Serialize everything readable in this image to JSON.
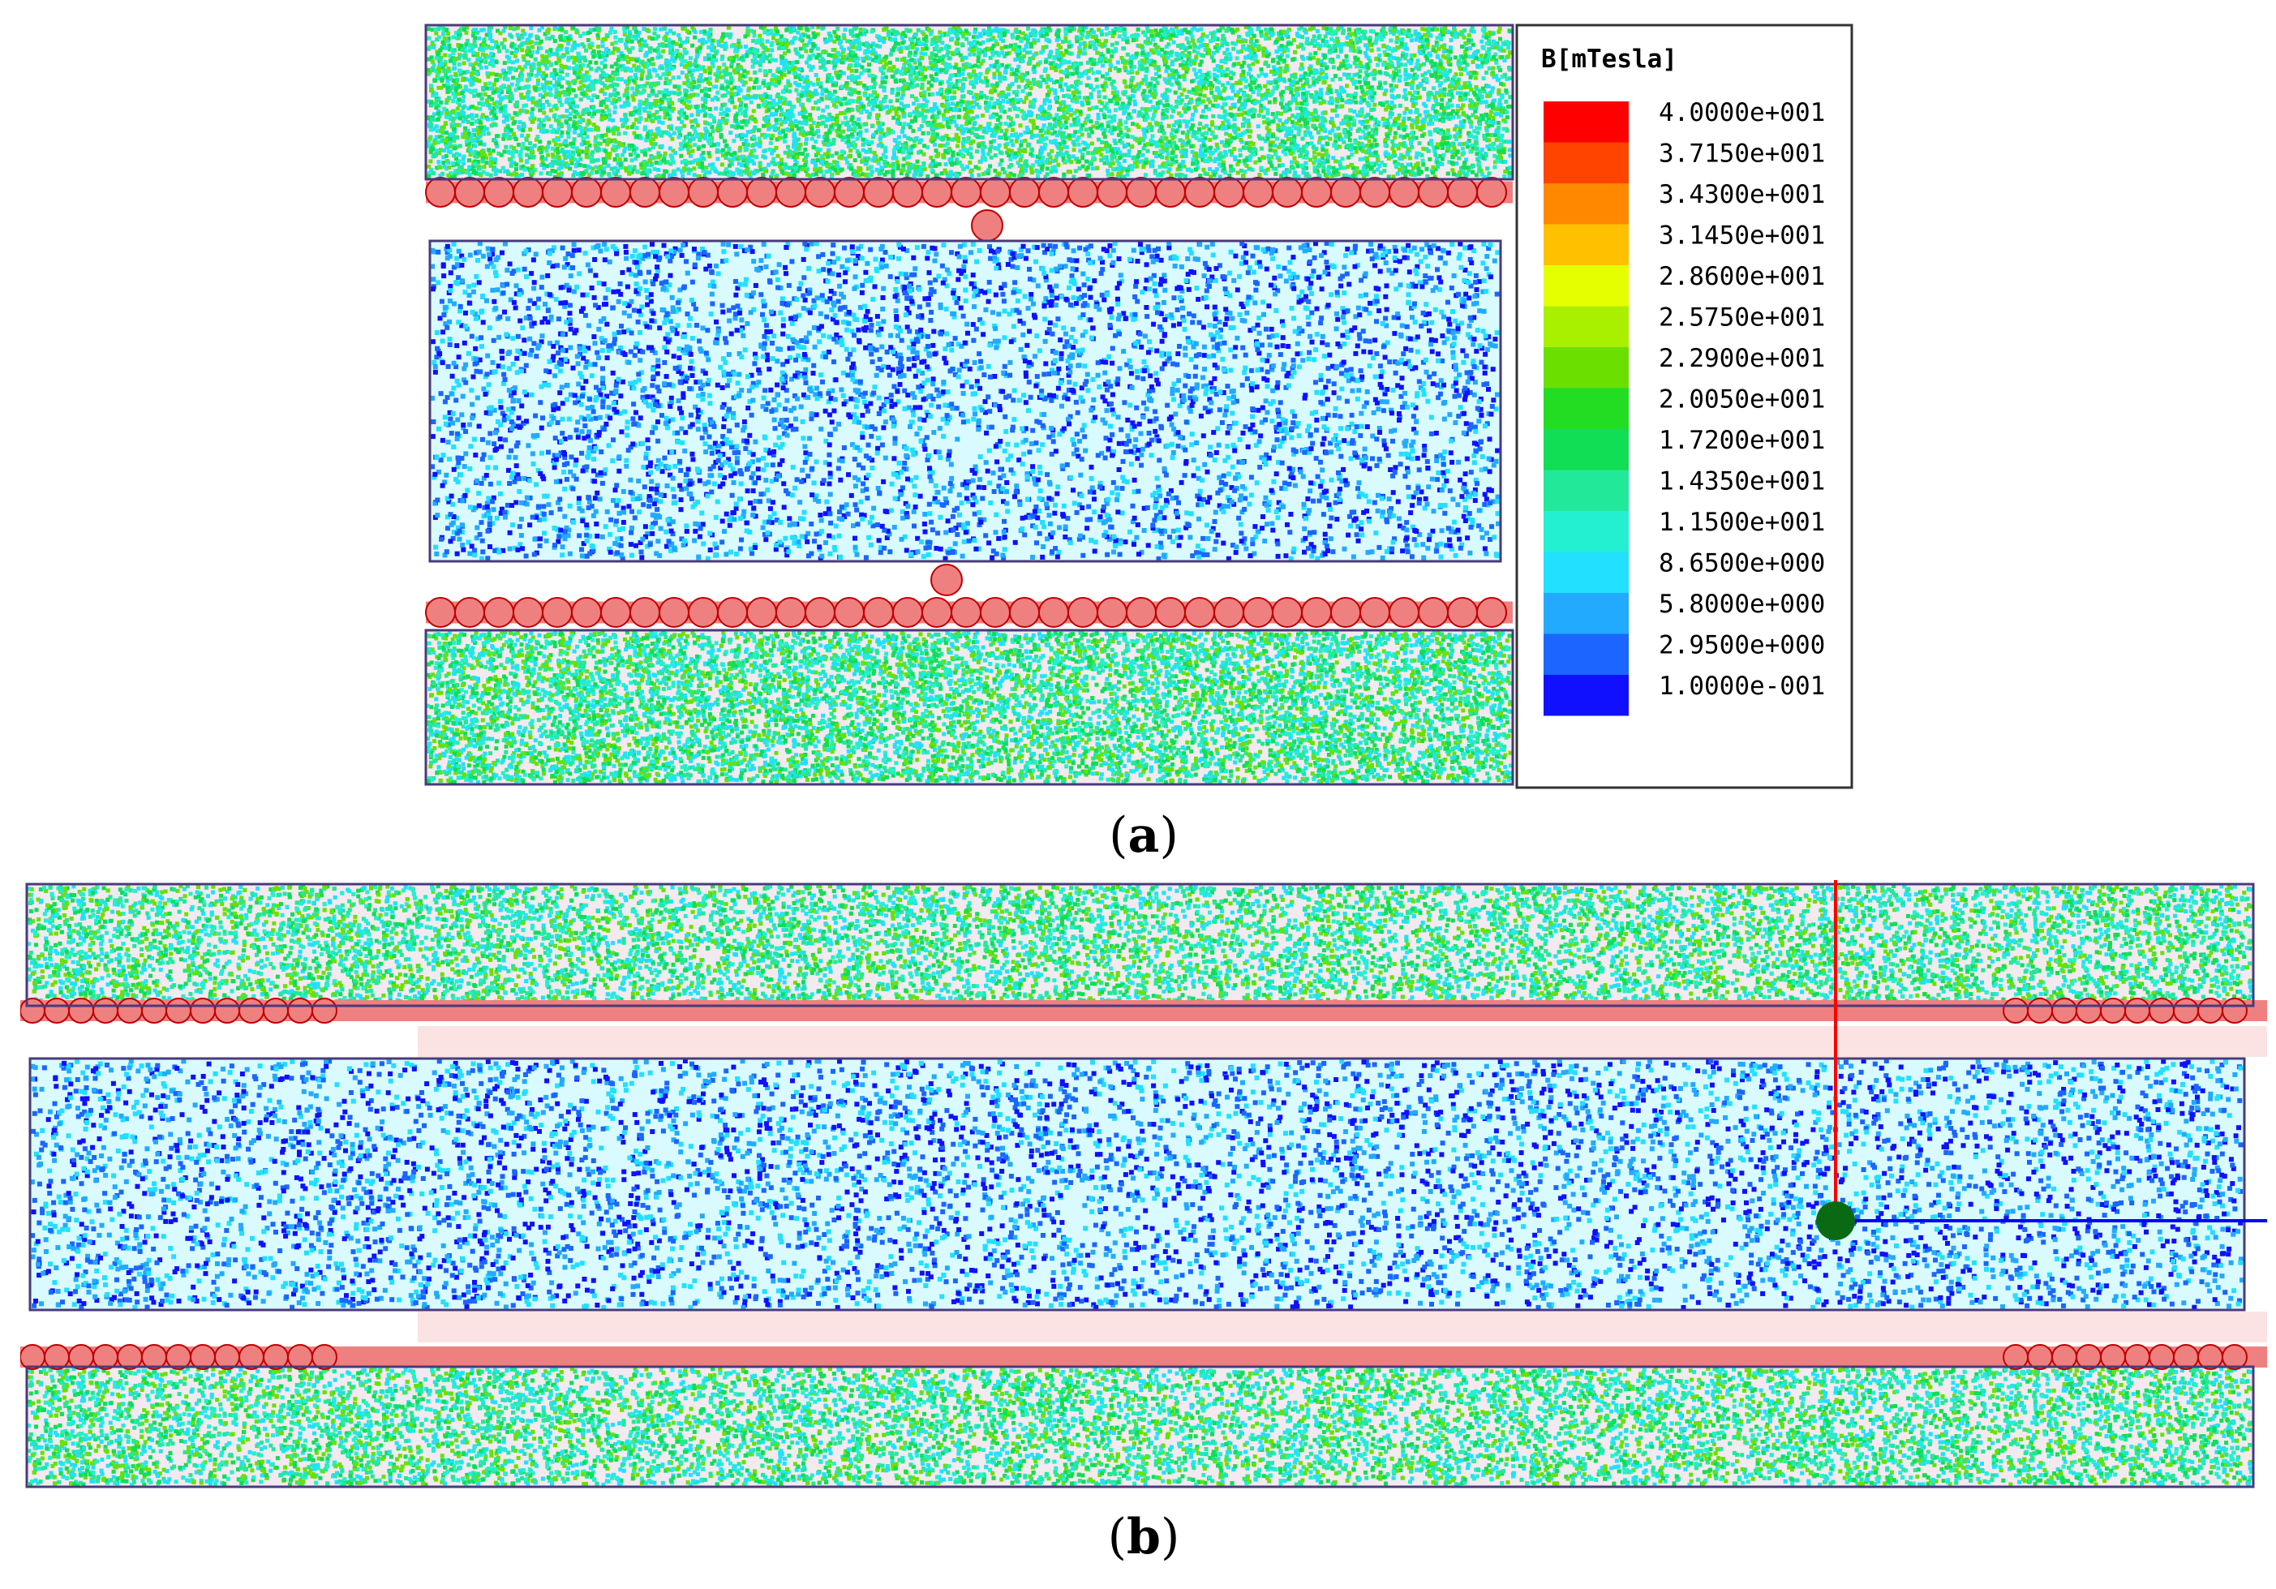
{
  "legend": {
    "title": "B[mTesla]",
    "entries": [
      {
        "value": "4.0000e+001",
        "color": "#ff0000"
      },
      {
        "value": "3.7150e+001",
        "color": "#ff4400"
      },
      {
        "value": "3.4300e+001",
        "color": "#ff8800"
      },
      {
        "value": "3.1450e+001",
        "color": "#ffc000"
      },
      {
        "value": "2.8600e+001",
        "color": "#e6ff00"
      },
      {
        "value": "2.5750e+001",
        "color": "#a8f000"
      },
      {
        "value": "2.2900e+001",
        "color": "#6ae000"
      },
      {
        "value": "2.0050e+001",
        "color": "#22dd22"
      },
      {
        "value": "1.7200e+001",
        "color": "#11dd55"
      },
      {
        "value": "1.4350e+001",
        "color": "#22e89a"
      },
      {
        "value": "1.1500e+001",
        "color": "#22f0d0"
      },
      {
        "value": "8.6500e+000",
        "color": "#22e0ff"
      },
      {
        "value": "5.8000e+000",
        "color": "#22aaff"
      },
      {
        "value": "2.9500e+000",
        "color": "#1a66ff"
      },
      {
        "value": "1.0000e-001",
        "color": "#1010ff"
      }
    ]
  },
  "captions": {
    "a_letter": "a",
    "b_letter": "b"
  },
  "colors": {
    "outer_field": [
      "#11dd55",
      "#22e89a",
      "#22f0d0",
      "#6ae000",
      "#22e0ff"
    ],
    "inner_field": [
      "#1a66ff",
      "#1010ff",
      "#22aaff",
      "#22e0ff"
    ],
    "region_fill_outer": "#f3eaf0",
    "region_fill_inner": "#d9fbff",
    "coil_fill": "#ef8080",
    "coil_edge": "#c00000",
    "axis_red": "#ff0000",
    "axis_blue": "#0000ff",
    "origin_green": "#0a6a14"
  }
}
